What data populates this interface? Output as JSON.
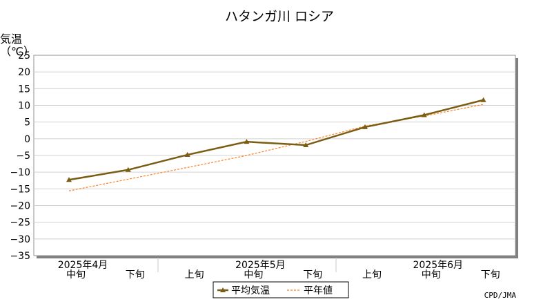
{
  "chart_data": {
    "type": "line",
    "title": "ハタンガ川 ロシア",
    "ylabel_line1": "気温",
    "ylabel_line2": "（℃）",
    "ylim": [
      -35,
      25
    ],
    "yticks": [
      "25",
      "20",
      "15",
      "10",
      "5",
      "0",
      "−5",
      "−10",
      "−15",
      "−20",
      "−25",
      "−30",
      "−35"
    ],
    "categories": [
      "中旬",
      "下旬",
      "上旬",
      "中旬",
      "下旬",
      "上旬",
      "中旬",
      "下旬"
    ],
    "month_labels": [
      {
        "label": "2025年4月",
        "at_index": 0
      },
      {
        "label": "2025年5月",
        "at_index": 3
      },
      {
        "label": "2025年6月",
        "at_index": 6
      }
    ],
    "series": [
      {
        "name": "平均気温",
        "color": "#7a5c12",
        "style": "solid",
        "marker": "triangle",
        "values": [
          -12.3,
          -9.3,
          -4.8,
          -0.9,
          -1.9,
          3.5,
          7.1,
          11.6
        ]
      },
      {
        "name": "平年値",
        "color": "#ff7f1f",
        "style": "dashed",
        "marker": "none",
        "values": [
          -15.6,
          -12.1,
          -8.6,
          -5.0,
          -0.8,
          3.8,
          6.8,
          10.3
        ]
      }
    ],
    "grid": true,
    "legend_position": "bottom-center"
  },
  "credit": "CPD/JMA"
}
